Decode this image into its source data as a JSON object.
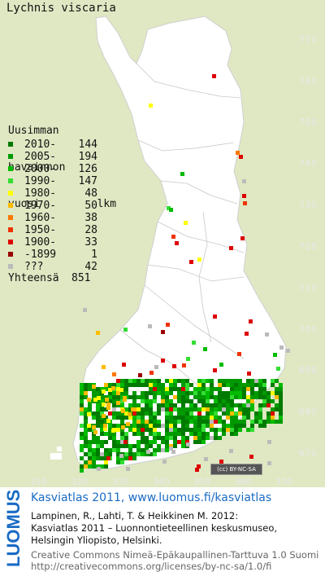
{
  "species": "Lychnis viscaria",
  "legend": {
    "title_lines": [
      "Uusimman",
      "havainnon",
      "vuosi         lkm"
    ],
    "rows": [
      {
        "period": "2010-",
        "count": "144",
        "color": "#007a00"
      },
      {
        "period": "2005-",
        "count": "194",
        "color": "#009a00"
      },
      {
        "period": "2000-",
        "count": "126",
        "color": "#00bb00"
      },
      {
        "period": "1990-",
        "count": "147",
        "color": "#33dd33"
      },
      {
        "period": "1980-",
        "count": "48",
        "color": "#ffff00"
      },
      {
        "period": "1970-",
        "count": "50",
        "color": "#ffbb00"
      },
      {
        "period": "1960-",
        "count": "38",
        "color": "#ff7700"
      },
      {
        "period": "1950-",
        "count": "28",
        "color": "#ee3300"
      },
      {
        "period": "1900-",
        "count": "33",
        "color": "#dd0000"
      },
      {
        "period": "-1899",
        "count": "1",
        "color": "#990000"
      },
      {
        "period": "???",
        "count": "42",
        "color": "#bbbbbb"
      }
    ],
    "total_label": "Yhteensä",
    "total_count": "851"
  },
  "grid": {
    "y_labels": [
      "770",
      "760",
      "750",
      "740",
      "730",
      "720",
      "710",
      "700",
      "690",
      "680",
      "670"
    ],
    "x_labels": [
      "310",
      "320",
      "330",
      "340",
      "350",
      "360",
      "370"
    ]
  },
  "license_badge": "BY-NC-SA",
  "footer": {
    "logo_text": "LUOMUS",
    "atlas_title": "Kasviatlas 2011, www.luomus.fi/kasviatlas",
    "citation": [
      "Lampinen, R., Lahti, T. & Heikkinen M. 2012:",
      "Kasviatlas 2011 – Luonnontieteellinen keskusmuseo,",
      "Helsingin Yliopisto, Helsinki."
    ],
    "license": [
      "Creative Commons Nimeä-Epäkaupallinen-Tarttuva 1.0 Suomi",
      "http://creativecommons.org/licenses/by-nc-sa/1.0/fi"
    ]
  },
  "colors": {
    "background": "#dfe8c3",
    "land": "#ffffff",
    "accent": "#1a6bc4"
  }
}
